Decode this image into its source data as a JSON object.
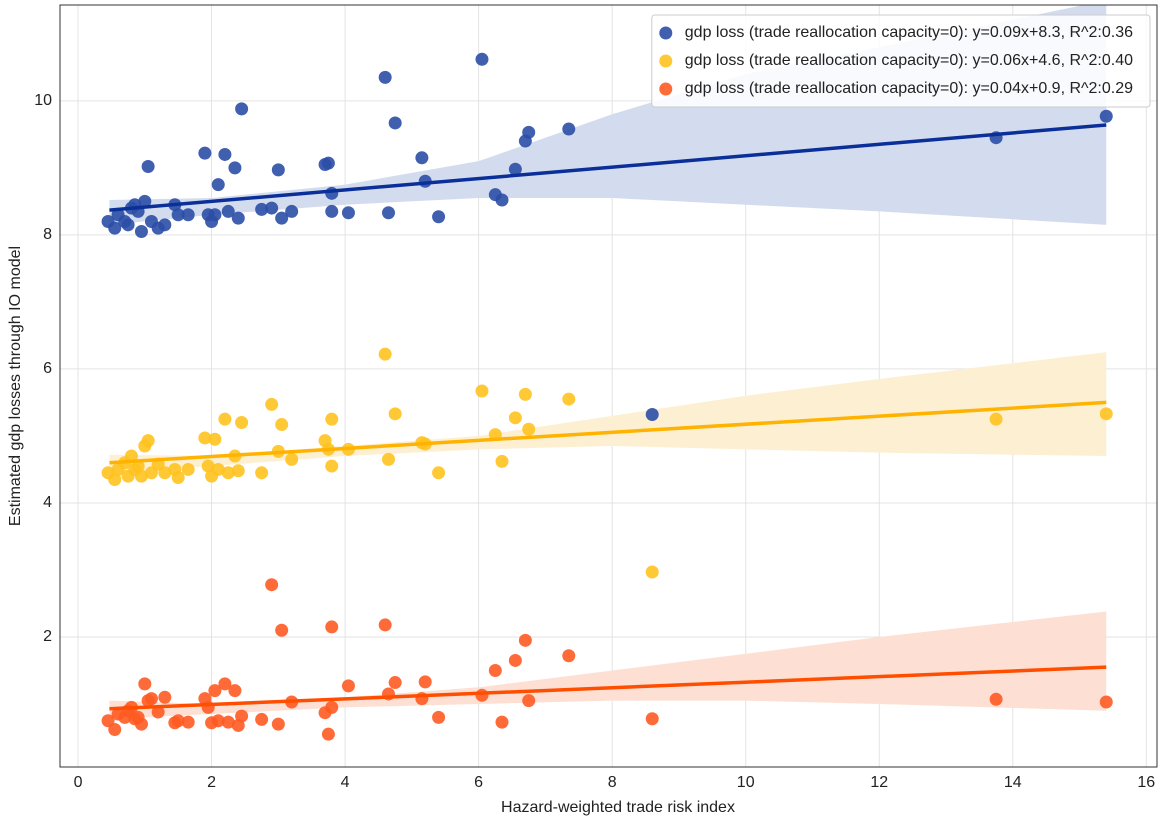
{
  "chart_data": {
    "type": "scatter",
    "xlabel": "Hazard-weighted trade risk index",
    "ylabel": "Estimated gdp losses through IO model",
    "xlim": [
      -0.27,
      16.16
    ],
    "ylim": [
      0.06,
      11.43
    ],
    "xticks": [
      0,
      2,
      4,
      6,
      8,
      10,
      12,
      14,
      16
    ],
    "yticks": [
      2,
      4,
      6,
      8,
      10
    ],
    "grid": true,
    "legend": "upper right",
    "x": [
      0.45,
      0.55,
      0.6,
      0.7,
      0.75,
      0.8,
      0.85,
      0.9,
      0.95,
      1.0,
      1.05,
      1.1,
      1.2,
      1.3,
      1.45,
      1.5,
      1.65,
      1.9,
      1.95,
      2.0,
      2.05,
      2.1,
      2.2,
      2.25,
      2.35,
      2.4,
      2.45,
      2.75,
      2.9,
      3.0,
      3.05,
      3.2,
      3.7,
      3.75,
      3.8,
      3.8,
      4.05,
      4.6,
      4.65,
      4.75,
      5.15,
      5.2,
      5.4,
      6.05,
      6.25,
      6.35,
      6.55,
      6.7,
      6.75,
      7.35,
      8.6,
      13.75,
      15.4
    ],
    "line_x": [
      0.47,
      15.4
    ],
    "band_x": [
      0.47,
      2,
      4,
      6,
      8,
      10,
      12,
      15.4
    ],
    "series": [
      {
        "name": "gdp loss (trade reallocation capacity=0): y=0.09x+8.3, R^2:0.36",
        "color": "#2b4ea6",
        "line_color": "#0b2f98",
        "band_color": "#d3dcef",
        "values": [
          8.2,
          8.1,
          8.3,
          8.2,
          8.15,
          8.4,
          8.45,
          8.35,
          8.05,
          8.5,
          9.02,
          8.2,
          8.1,
          8.15,
          8.45,
          8.3,
          8.3,
          9.22,
          8.3,
          8.2,
          8.3,
          8.75,
          9.2,
          8.35,
          9.0,
          8.25,
          9.88,
          8.38,
          8.4,
          8.97,
          8.25,
          8.35,
          9.05,
          9.07,
          8.35,
          8.62,
          8.33,
          10.35,
          8.33,
          9.67,
          9.15,
          8.8,
          8.27,
          10.62,
          8.6,
          8.52,
          8.98,
          9.4,
          9.53,
          9.58,
          5.32,
          9.45,
          9.77
        ],
        "line": [
          8.37,
          9.64
        ],
        "band_lower": [
          8.15,
          8.3,
          8.45,
          8.55,
          8.55,
          8.45,
          8.35,
          8.15
        ],
        "band_upper": [
          8.52,
          8.55,
          8.75,
          9.1,
          9.8,
          10.4,
          10.8,
          11.5
        ]
      },
      {
        "name": "gdp loss (trade reallocation capacity=0): y=0.06x+4.6, R^2:0.40",
        "color": "#ffc21f",
        "line_color": "#ffb300",
        "band_color": "#fdf0d2",
        "values": [
          4.45,
          4.35,
          4.5,
          4.6,
          4.4,
          4.7,
          4.5,
          4.55,
          4.4,
          4.85,
          4.93,
          4.45,
          4.58,
          4.45,
          4.5,
          4.38,
          4.5,
          4.97,
          4.55,
          4.4,
          4.95,
          4.5,
          5.25,
          4.45,
          4.7,
          4.48,
          5.2,
          4.45,
          5.47,
          4.77,
          5.17,
          4.65,
          4.93,
          4.8,
          5.25,
          4.55,
          4.8,
          6.22,
          4.65,
          5.33,
          4.9,
          4.88,
          4.45,
          5.67,
          5.02,
          4.62,
          5.27,
          5.62,
          5.1,
          5.55,
          2.97,
          5.25,
          5.33
        ],
        "line": [
          4.6,
          5.5
        ],
        "band_lower": [
          4.45,
          4.55,
          4.7,
          4.8,
          4.85,
          4.8,
          4.75,
          4.7
        ],
        "band_upper": [
          4.72,
          4.7,
          4.85,
          5.0,
          5.3,
          5.6,
          5.85,
          6.25
        ]
      },
      {
        "name": "gdp loss (trade reallocation capacity=0): y=0.04x+0.9, R^2:0.29",
        "color": "#ff5b22",
        "line_color": "#ff4e00",
        "band_color": "#fde0d3",
        "values": [
          0.75,
          0.62,
          0.85,
          0.8,
          0.9,
          0.95,
          0.78,
          0.8,
          0.7,
          1.3,
          1.05,
          1.08,
          0.88,
          1.1,
          0.72,
          0.75,
          0.73,
          1.08,
          0.95,
          0.72,
          1.2,
          0.75,
          1.3,
          0.73,
          1.2,
          0.68,
          0.82,
          0.77,
          2.78,
          0.7,
          2.1,
          1.03,
          0.87,
          0.55,
          2.15,
          0.95,
          1.27,
          2.18,
          1.15,
          1.32,
          1.08,
          1.33,
          0.8,
          1.13,
          1.5,
          0.73,
          1.65,
          1.95,
          1.05,
          1.72,
          0.78,
          1.07,
          1.03
        ],
        "line": [
          0.93,
          1.55
        ],
        "band_lower": [
          0.78,
          0.85,
          0.95,
          1.0,
          1.05,
          1.05,
          1.0,
          0.9
        ],
        "band_upper": [
          1.05,
          1.0,
          1.1,
          1.25,
          1.5,
          1.75,
          2.0,
          2.38
        ]
      }
    ]
  }
}
